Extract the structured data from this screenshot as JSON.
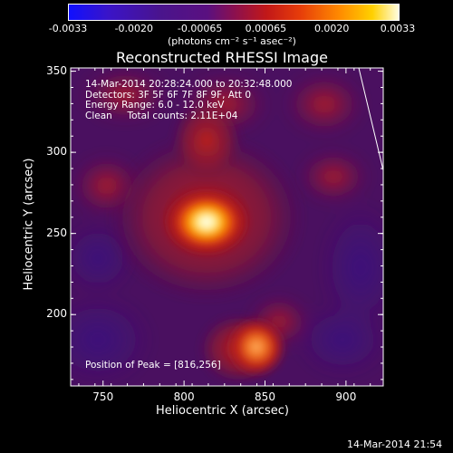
{
  "colorbar": {
    "tick_labels": [
      "-0.0033",
      "-0.0020",
      "-0.00065",
      "0.00065",
      "0.0020",
      "0.0033"
    ],
    "units": "(photons cm⁻² s⁻¹ asec⁻²)"
  },
  "plot": {
    "title": "Reconstructed RHESSI Image",
    "xlabel": "Heliocentric X (arcsec)",
    "ylabel": "Heliocentric Y (arcsec)",
    "x_ticks": [
      "750",
      "800",
      "850",
      "900"
    ],
    "y_ticks": [
      "350",
      "300",
      "250",
      "200"
    ]
  },
  "info": {
    "time_range": "14-Mar-2014 20:28:24.000 to 20:32:48.000",
    "detectors": "Detectors: 3F 5F 6F 7F 8F 9F, Att 0",
    "energy": "Energy Range: 6.0 - 12.0 keV",
    "clean": "Clean     Total counts: 2.11E+04",
    "peak": "Position of Peak = [816,256]"
  },
  "footer": {
    "timestamp": "14-Mar-2014 21:54"
  },
  "chart_data": {
    "type": "heatmap",
    "title": "Reconstructed RHESSI Image",
    "xlabel": "Heliocentric X (arcsec)",
    "ylabel": "Heliocentric Y (arcsec)",
    "xlim": [
      730,
      923
    ],
    "ylim": [
      156,
      352
    ],
    "zlim": [
      -0.0033,
      0.0033
    ],
    "colorscale": "blue-purple-red-yellow-white",
    "peak": {
      "x": 816,
      "y": 256
    },
    "sources": [
      {
        "name": "main",
        "x": 816,
        "y": 256,
        "level": 0.0033
      },
      {
        "name": "southern",
        "x": 845,
        "y": 174,
        "level": 0.0024
      }
    ],
    "limb_line": true
  }
}
